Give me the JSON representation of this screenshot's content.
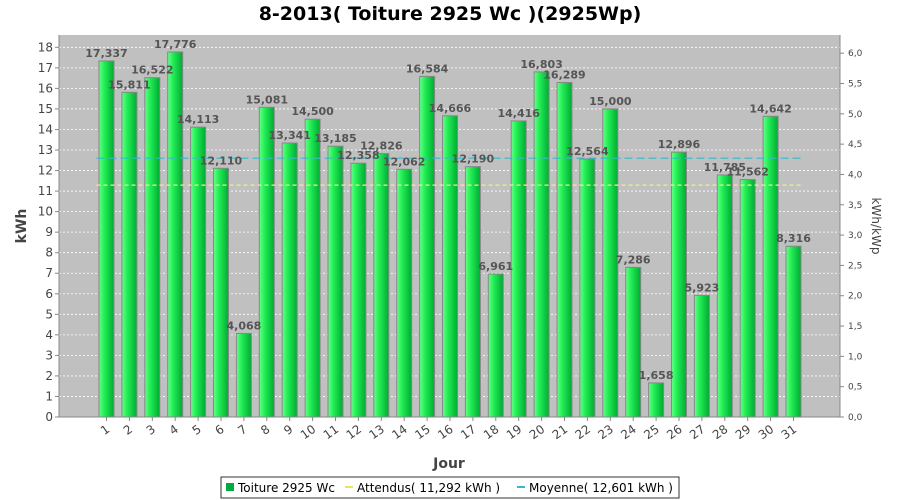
{
  "chart_data": {
    "type": "bar",
    "title": "8-2013( Toiture 2925 Wc )(2925Wp)",
    "xlabel": "Jour",
    "ylabel": "kWh",
    "y2label": "kWh/kWp",
    "ylim": [
      0,
      18.6
    ],
    "y2lim": [
      0,
      6.3
    ],
    "y_ticks": [
      "0",
      "1",
      "2",
      "3",
      "4",
      "5",
      "6",
      "7",
      "8",
      "9",
      "10",
      "11",
      "12",
      "13",
      "14",
      "15",
      "16",
      "17",
      "18"
    ],
    "y2_ticks": [
      "0,0",
      "0,5",
      "1,0",
      "1,5",
      "2,0",
      "2,5",
      "3,0",
      "3,5",
      "4,0",
      "4,5",
      "5,0",
      "5,5",
      "6,0"
    ],
    "categories": [
      "1",
      "2",
      "3",
      "4",
      "5",
      "6",
      "7",
      "8",
      "9",
      "10",
      "11",
      "12",
      "13",
      "14",
      "15",
      "16",
      "17",
      "18",
      "19",
      "20",
      "21",
      "22",
      "23",
      "24",
      "25",
      "26",
      "27",
      "28",
      "29",
      "30",
      "31"
    ],
    "series": [
      {
        "name": "Toiture 2925 Wc",
        "values": [
          17.337,
          15.811,
          16.522,
          17.776,
          14.113,
          12.11,
          4.068,
          15.081,
          13.341,
          14.5,
          13.185,
          12.358,
          12.826,
          12.062,
          16.584,
          14.666,
          12.19,
          6.961,
          14.416,
          16.803,
          16.289,
          12.564,
          15.0,
          7.286,
          1.658,
          12.896,
          5.923,
          11.785,
          11.562,
          14.642,
          8.316
        ],
        "labels": [
          "17,337",
          "15,811",
          "16,522",
          "17,776",
          "14,113",
          "12,110",
          "4,068",
          "15,081",
          "13,341",
          "14,500",
          "13,185",
          "12,358",
          "12,826",
          "12,062",
          "16,584",
          "14,666",
          "12,190",
          "6,961",
          "14,416",
          "16,803",
          "16,289",
          "12,564",
          "15,000",
          "7,286",
          "1,658",
          "12,896",
          "5,923",
          "11,785",
          "11,562",
          "14,642",
          "8,316"
        ],
        "color": "#00cc44"
      }
    ],
    "reference_lines": [
      {
        "name": "Attendus( 11,292 kWh )",
        "value": 11.292,
        "color": "#f0f080",
        "dash": "4,3"
      },
      {
        "name": "Moyenne( 12,601 kWh )",
        "value": 12.601,
        "color": "#33bbcc",
        "dash": "8,4"
      }
    ],
    "grid": true,
    "legend_position": "bottom-center",
    "colors": {
      "plot_background": "#c0c0c0",
      "bar_fill": "#00cc44",
      "bar_edge": "#888888"
    }
  },
  "legend": {
    "items": [
      {
        "label": "Toiture 2925 Wc",
        "color": "#00aa44",
        "kind": "square"
      },
      {
        "label": "Attendus( 11,292 kWh )",
        "color": "#e8e860",
        "kind": "line"
      },
      {
        "label": "Moyenne( 12,601 kWh )",
        "color": "#33bbcc",
        "kind": "line"
      }
    ]
  }
}
